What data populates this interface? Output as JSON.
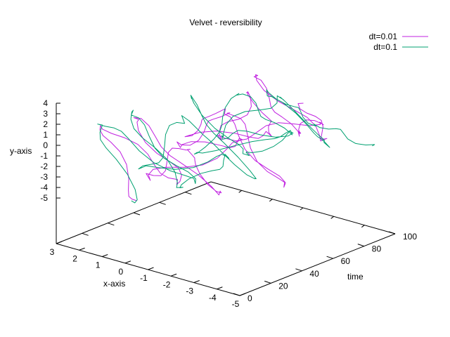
{
  "chart_data": {
    "type": "line",
    "title": "Velvet - reversibility",
    "xlabel": "x-axis",
    "ylabel": "y-axis",
    "zlabel": "time",
    "x_ticks": [
      "3",
      "2",
      "1",
      "0",
      "-1",
      "-2",
      "-3",
      "-4",
      "-5"
    ],
    "y_ticks": [
      "4",
      "3",
      "2",
      "1",
      "0",
      "-1",
      "-2",
      "-3",
      "-4",
      "-5"
    ],
    "time_ticks": [
      "0",
      "20",
      "40",
      "60",
      "80",
      "100"
    ],
    "xlim": [
      3,
      -5
    ],
    "ylim": [
      -5,
      4
    ],
    "timelim": [
      0,
      100
    ],
    "legend_position": "top-right",
    "series": [
      {
        "name": "dt=0.01",
        "color": "#c020e0",
        "time": [
          0,
          5,
          10,
          15,
          20,
          25,
          30,
          35,
          40,
          45,
          50,
          55,
          60,
          65,
          70,
          75,
          80,
          85,
          90,
          95,
          100
        ],
        "x": [
          -0.5,
          1.2,
          -1.8,
          0.6,
          -2.6,
          -0.9,
          1.0,
          -2.9,
          0.2,
          -1.5,
          -3.4,
          -0.4,
          1.4,
          -2.1,
          -0.8,
          0.9,
          -3.0,
          -1.6,
          0.5,
          -2.4,
          -1.0
        ],
        "y": [
          -3.4,
          2.6,
          -1.2,
          3.1,
          -2.2,
          0.9,
          -3.6,
          1.8,
          -0.6,
          3.4,
          -2.8,
          2.2,
          -1.5,
          0.4,
          3.0,
          -2.5,
          1.4,
          -0.9,
          2.8,
          -1.8,
          0.6
        ]
      },
      {
        "name": "dt=0.1",
        "color": "#00a070",
        "time": [
          0,
          5,
          10,
          15,
          20,
          25,
          30,
          35,
          40,
          45,
          50,
          55,
          60,
          65,
          70,
          75,
          80,
          85,
          90,
          95,
          100
        ],
        "x": [
          -0.5,
          1.5,
          -2.2,
          0.9,
          -1.1,
          -3.0,
          1.2,
          -0.2,
          -2.8,
          0.4,
          -1.9,
          -3.6,
          0.8,
          -0.6,
          -2.4,
          1.1,
          -1.3,
          -3.2,
          -0.3,
          -2.0,
          -4.0
        ],
        "y": [
          -3.4,
          2.9,
          -0.8,
          3.6,
          -2.6,
          1.2,
          -3.1,
          2.4,
          -1.7,
          3.8,
          -1.0,
          2.0,
          -2.9,
          3.2,
          0.3,
          -2.2,
          2.7,
          -1.4,
          1.6,
          -0.5,
          -1.6
        ]
      }
    ]
  }
}
